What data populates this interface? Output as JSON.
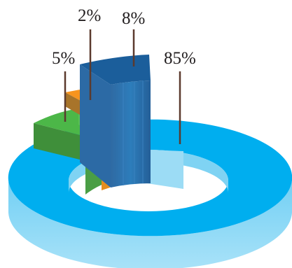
{
  "chart_data": {
    "type": "pie",
    "variant": "3d-donut-exploded",
    "slices": [
      {
        "label": "85%",
        "value": 85,
        "color": "#00aeef"
      },
      {
        "label": "8%",
        "value": 8,
        "color": "#1b75bb"
      },
      {
        "label": "2%",
        "value": 2,
        "color": "#f7941e"
      },
      {
        "label": "5%",
        "value": 5,
        "color": "#4cb748"
      }
    ]
  }
}
